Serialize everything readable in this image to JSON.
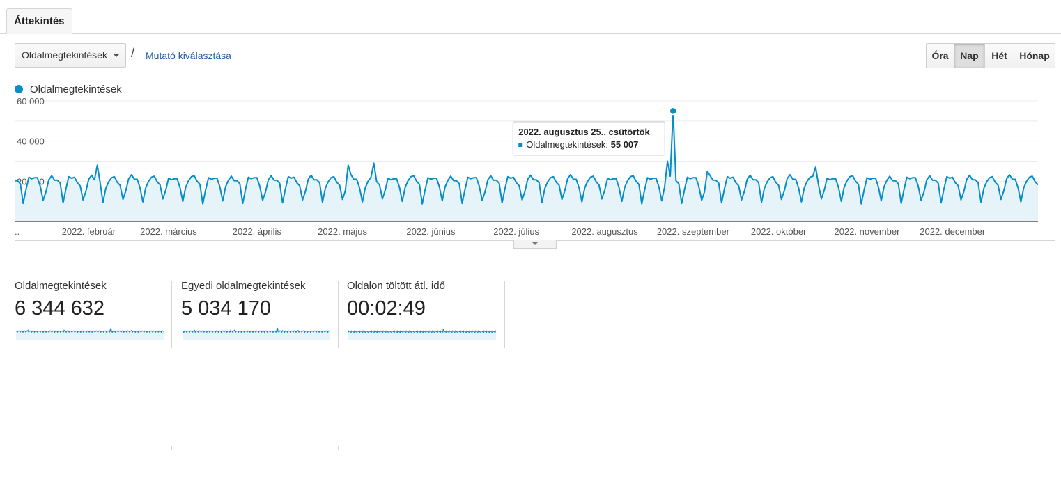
{
  "tabs": [
    {
      "label": "Áttekintés",
      "active": true
    }
  ],
  "metric_selector": {
    "selected": "Oldalmegtekintések",
    "separator": "/",
    "select_metric_link": "Mutató kiválasztása"
  },
  "granularity": {
    "options": [
      "Óra",
      "Nap",
      "Hét",
      "Hónap"
    ],
    "selected": "Nap"
  },
  "colors": {
    "series": "#058dc7",
    "fill": "#e6f4fa",
    "link": "#1f5aa5"
  },
  "chart_data": {
    "type": "area",
    "series": [
      {
        "name": "Oldalmegtekintések"
      }
    ],
    "y_ticks": [
      "20 000",
      "40 000",
      "60 000"
    ],
    "y_tick_values": [
      20000,
      40000,
      60000
    ],
    "ylim": [
      0,
      60000
    ],
    "x_start_label": "..",
    "x_labels": [
      "2022. február",
      "2022. március",
      "2022. április",
      "2022. május",
      "2022. június",
      "2022. július",
      "2022. augusztus",
      "2022. szeptember",
      "2022. október",
      "2022. november",
      "2022. december"
    ],
    "x_tick_dates": [
      "2022-02-01",
      "2022-03-01",
      "2022-04-01",
      "2022-05-01",
      "2022-06-01",
      "2022-07-01",
      "2022-08-01",
      "2022-09-01",
      "2022-10-01",
      "2022-11-01",
      "2022-12-01"
    ],
    "date_range": [
      "2022-01-06",
      "2022-12-31"
    ],
    "weekly_pattern": [
      16000,
      21000,
      22000,
      21500,
      20500,
      18000,
      10000
    ],
    "notable_points": [
      {
        "date": "2022-02-04",
        "value": 28000
      },
      {
        "date": "2022-05-03",
        "value": 28000
      },
      {
        "date": "2022-05-12",
        "value": 29000
      },
      {
        "date": "2022-08-23",
        "value": 30000
      },
      {
        "date": "2022-08-25",
        "value": 55007
      },
      {
        "date": "2022-09-06",
        "value": 25000
      },
      {
        "date": "2022-10-14",
        "value": 27000
      }
    ],
    "tooltip": {
      "date": "2022. augusztus 25., csütörtök",
      "series": "Oldalmegtekintések",
      "value": "55 007"
    },
    "grid": true,
    "legend": "top-left"
  },
  "scorecards": [
    {
      "title": "Oldalmegtekintések",
      "value": "6 344 632"
    },
    {
      "title": "Egyedi oldalmegtekintések",
      "value": "5 034 170"
    },
    {
      "title": "Oldalon töltött átl. idő",
      "value": "00:02:49"
    }
  ]
}
